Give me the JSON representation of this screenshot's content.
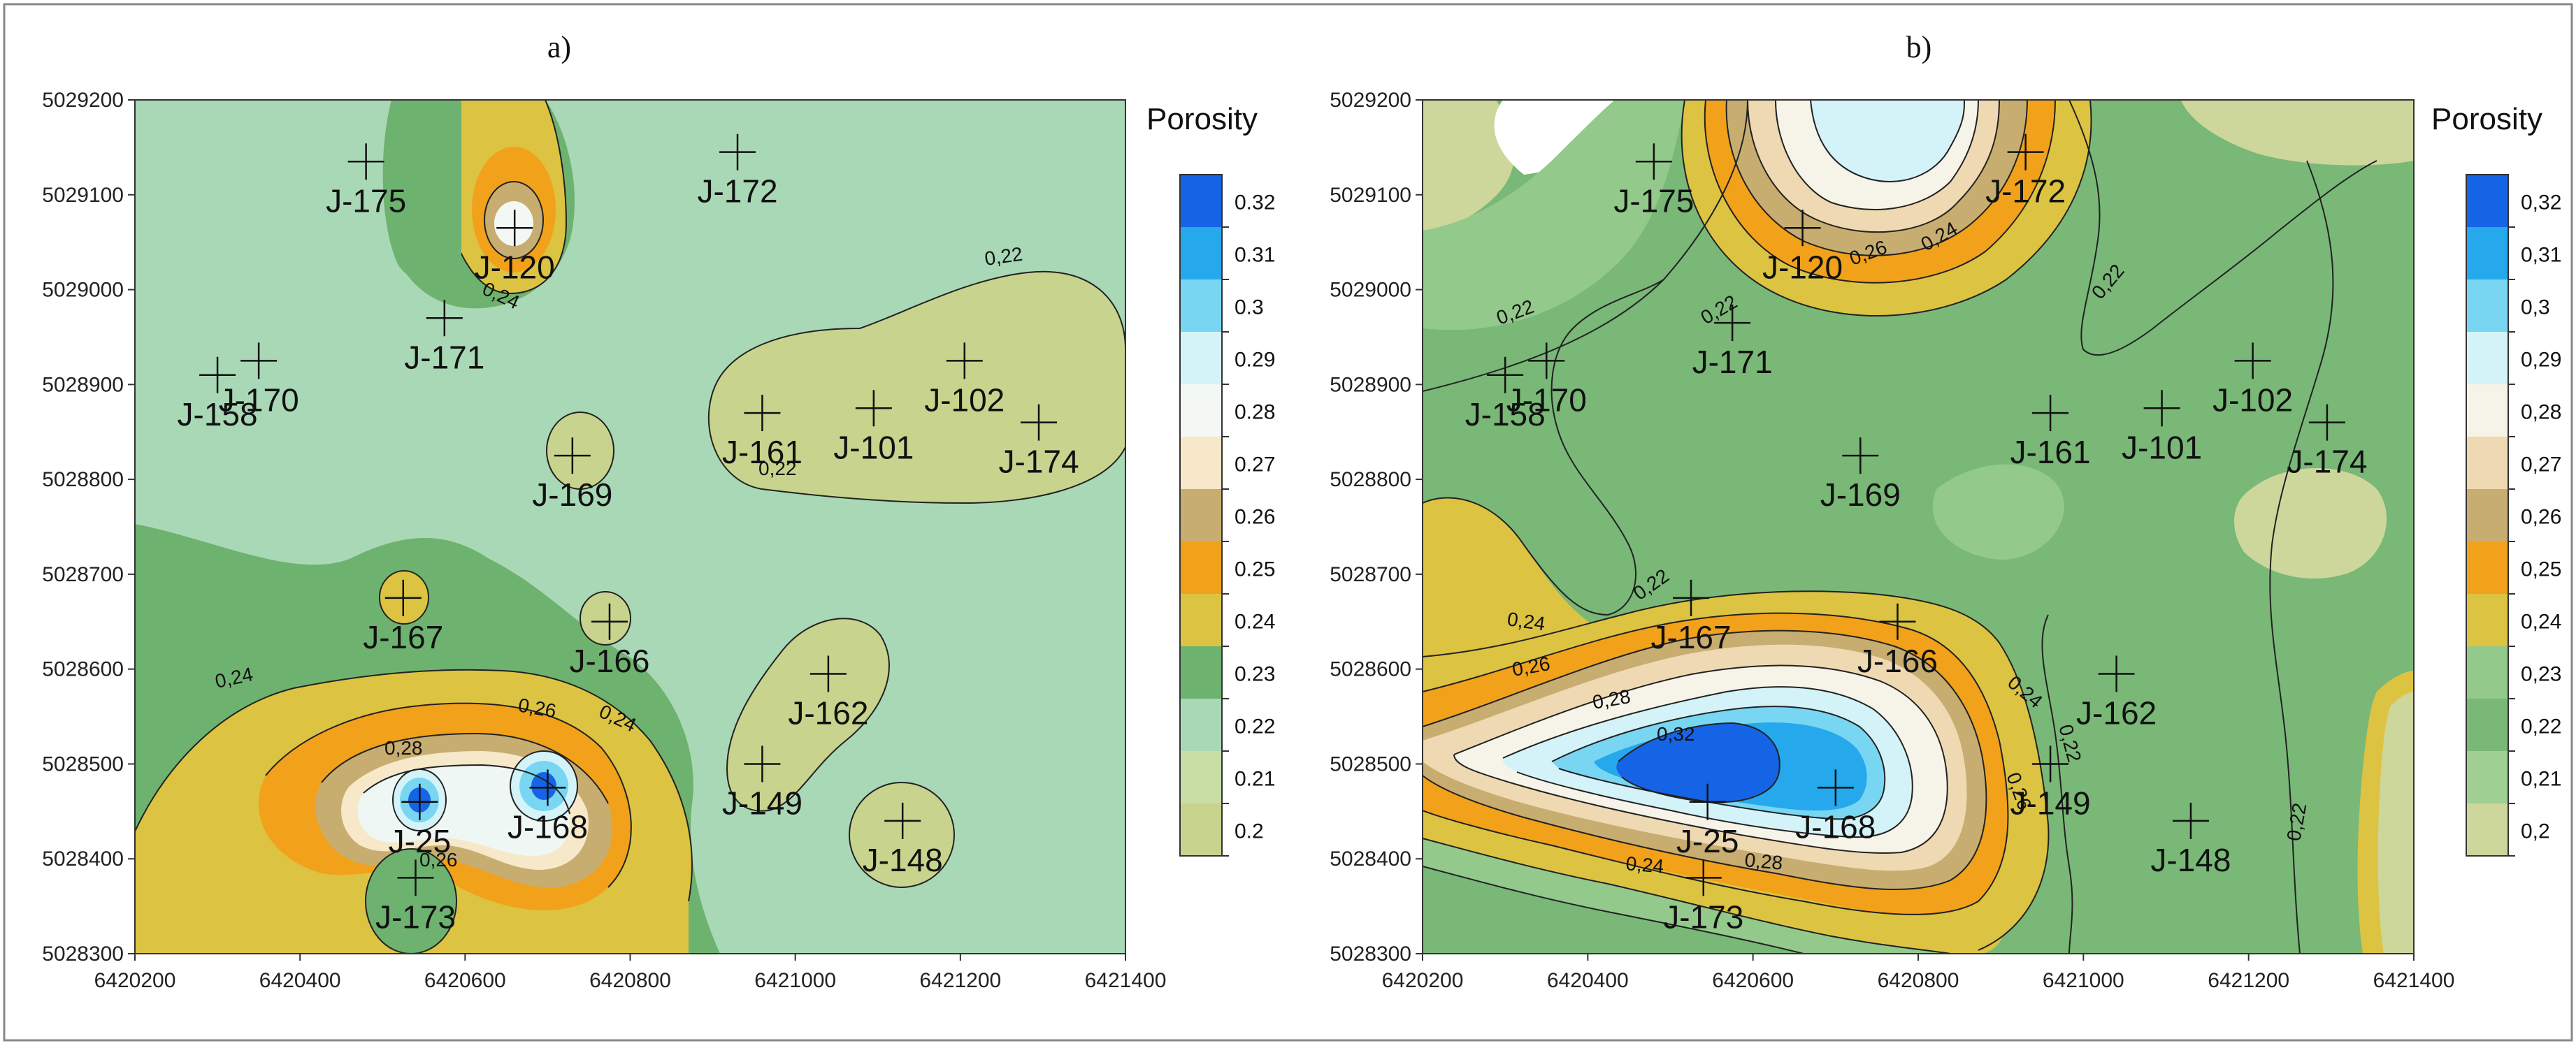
{
  "chart_data": [
    {
      "type": "contour",
      "panel_label": "a)",
      "x_ticks": [
        "6420200",
        "6420400",
        "6420600",
        "6420800",
        "6421000",
        "6421200",
        "6421400"
      ],
      "y_ticks": [
        "5029200",
        "5029100",
        "5029000",
        "5028900",
        "5028800",
        "5028700",
        "5028600",
        "5028500",
        "5028400",
        "5028300"
      ],
      "xlim": [
        6420200,
        6421400
      ],
      "ylim": [
        5028300,
        5029200
      ],
      "legend_title": "Porosity",
      "contour_labels": [
        "0,22",
        "0,22",
        "0,24",
        "0,24",
        "0,24",
        "0,26",
        "0,26",
        "0,28"
      ],
      "wells": [
        {
          "name": "J-175",
          "x": 6420480,
          "y": 5029135
        },
        {
          "name": "J-120",
          "x": 6420660,
          "y": 5029065
        },
        {
          "name": "J-172",
          "x": 6420930,
          "y": 5029145
        },
        {
          "name": "J-171",
          "x": 6420575,
          "y": 5028970
        },
        {
          "name": "J-170",
          "x": 6420350,
          "y": 5028925
        },
        {
          "name": "J-158",
          "x": 6420300,
          "y": 5028910
        },
        {
          "name": "J-102",
          "x": 6421205,
          "y": 5028925
        },
        {
          "name": "J-161",
          "x": 6420960,
          "y": 5028870
        },
        {
          "name": "J-101",
          "x": 6421095,
          "y": 5028875
        },
        {
          "name": "J-174",
          "x": 6421295,
          "y": 5028860
        },
        {
          "name": "J-169",
          "x": 6420730,
          "y": 5028825
        },
        {
          "name": "J-167",
          "x": 6420525,
          "y": 5028675
        },
        {
          "name": "J-166",
          "x": 6420775,
          "y": 5028650
        },
        {
          "name": "J-162",
          "x": 6421040,
          "y": 5028595
        },
        {
          "name": "J-149",
          "x": 6420960,
          "y": 5028500
        },
        {
          "name": "J-148",
          "x": 6421130,
          "y": 5028440
        },
        {
          "name": "J-168",
          "x": 6420700,
          "y": 5028475
        },
        {
          "name": "J-25",
          "x": 6420545,
          "y": 5028460
        },
        {
          "name": "J-173",
          "x": 6420540,
          "y": 5028380
        }
      ]
    },
    {
      "type": "contour",
      "panel_label": "b)",
      "x_ticks": [
        "6420200",
        "6420400",
        "6420600",
        "6420800",
        "6421000",
        "6421200",
        "6421400"
      ],
      "y_ticks": [
        "5029200",
        "5029100",
        "5029000",
        "5028900",
        "5028800",
        "5028700",
        "5028600",
        "5028500",
        "5028400",
        "5028300"
      ],
      "xlim": [
        6420200,
        6421400
      ],
      "ylim": [
        5028300,
        5029200
      ],
      "legend_title": "Porosity",
      "contour_labels": [
        "0,22",
        "0,22",
        "0,22",
        "0,22",
        "0,22",
        "0,22",
        "0,24",
        "0,24",
        "0,24",
        "0,24",
        "0,26",
        "0,26",
        "0,26",
        "0,28",
        "0,28",
        "0,32"
      ],
      "wells": [
        {
          "name": "J-175",
          "x": 6420480,
          "y": 5029135
        },
        {
          "name": "J-120",
          "x": 6420660,
          "y": 5029065
        },
        {
          "name": "J-172",
          "x": 6420930,
          "y": 5029145
        },
        {
          "name": "J-171",
          "x": 6420575,
          "y": 5028965
        },
        {
          "name": "J-170",
          "x": 6420350,
          "y": 5028925
        },
        {
          "name": "J-158",
          "x": 6420300,
          "y": 5028910
        },
        {
          "name": "J-102",
          "x": 6421205,
          "y": 5028925
        },
        {
          "name": "J-161",
          "x": 6420960,
          "y": 5028870
        },
        {
          "name": "J-101",
          "x": 6421095,
          "y": 5028875
        },
        {
          "name": "J-174",
          "x": 6421295,
          "y": 5028860
        },
        {
          "name": "J-169",
          "x": 6420730,
          "y": 5028825
        },
        {
          "name": "J-167",
          "x": 6420525,
          "y": 5028675
        },
        {
          "name": "J-166",
          "x": 6420775,
          "y": 5028650
        },
        {
          "name": "J-162",
          "x": 6421040,
          "y": 5028595
        },
        {
          "name": "J-149",
          "x": 6420960,
          "y": 5028500
        },
        {
          "name": "J-148",
          "x": 6421130,
          "y": 5028440
        },
        {
          "name": "J-168",
          "x": 6420700,
          "y": 5028475
        },
        {
          "name": "J-25",
          "x": 6420545,
          "y": 5028460
        },
        {
          "name": "J-173",
          "x": 6420540,
          "y": 5028380
        }
      ]
    }
  ],
  "legend": {
    "a": {
      "labels": [
        "0.32",
        "0.31",
        "0.3",
        "0.29",
        "0.28",
        "0.27",
        "0.26",
        "0.25",
        "0.24",
        "0.23",
        "0.22",
        "0.21",
        "0.2"
      ],
      "colors": [
        "#1664e6",
        "#26a8ec",
        "#78d6f2",
        "#d4f3f8",
        "#f3f8f4",
        "#f6e8c8",
        "#c8ad70",
        "#f2a11a",
        "#dcc342",
        "#6db36f",
        "#a9d8b6",
        "#c9dea4",
        "#c8d38d"
      ]
    },
    "b": {
      "labels": [
        "0,32",
        "0,31",
        "0,3",
        "0,29",
        "0,28",
        "0,27",
        "0,26",
        "0,25",
        "0,24",
        "0,23",
        "0,22",
        "0,21",
        "0,2"
      ],
      "colors": [
        "#1664e6",
        "#26a8ec",
        "#78d6f2",
        "#d4f3f8",
        "#f6f4e8",
        "#efd9b2",
        "#c8ad70",
        "#f2a11a",
        "#dcc342",
        "#93c98a",
        "#79b877",
        "#9fcf93",
        "#cdd79b"
      ]
    }
  }
}
